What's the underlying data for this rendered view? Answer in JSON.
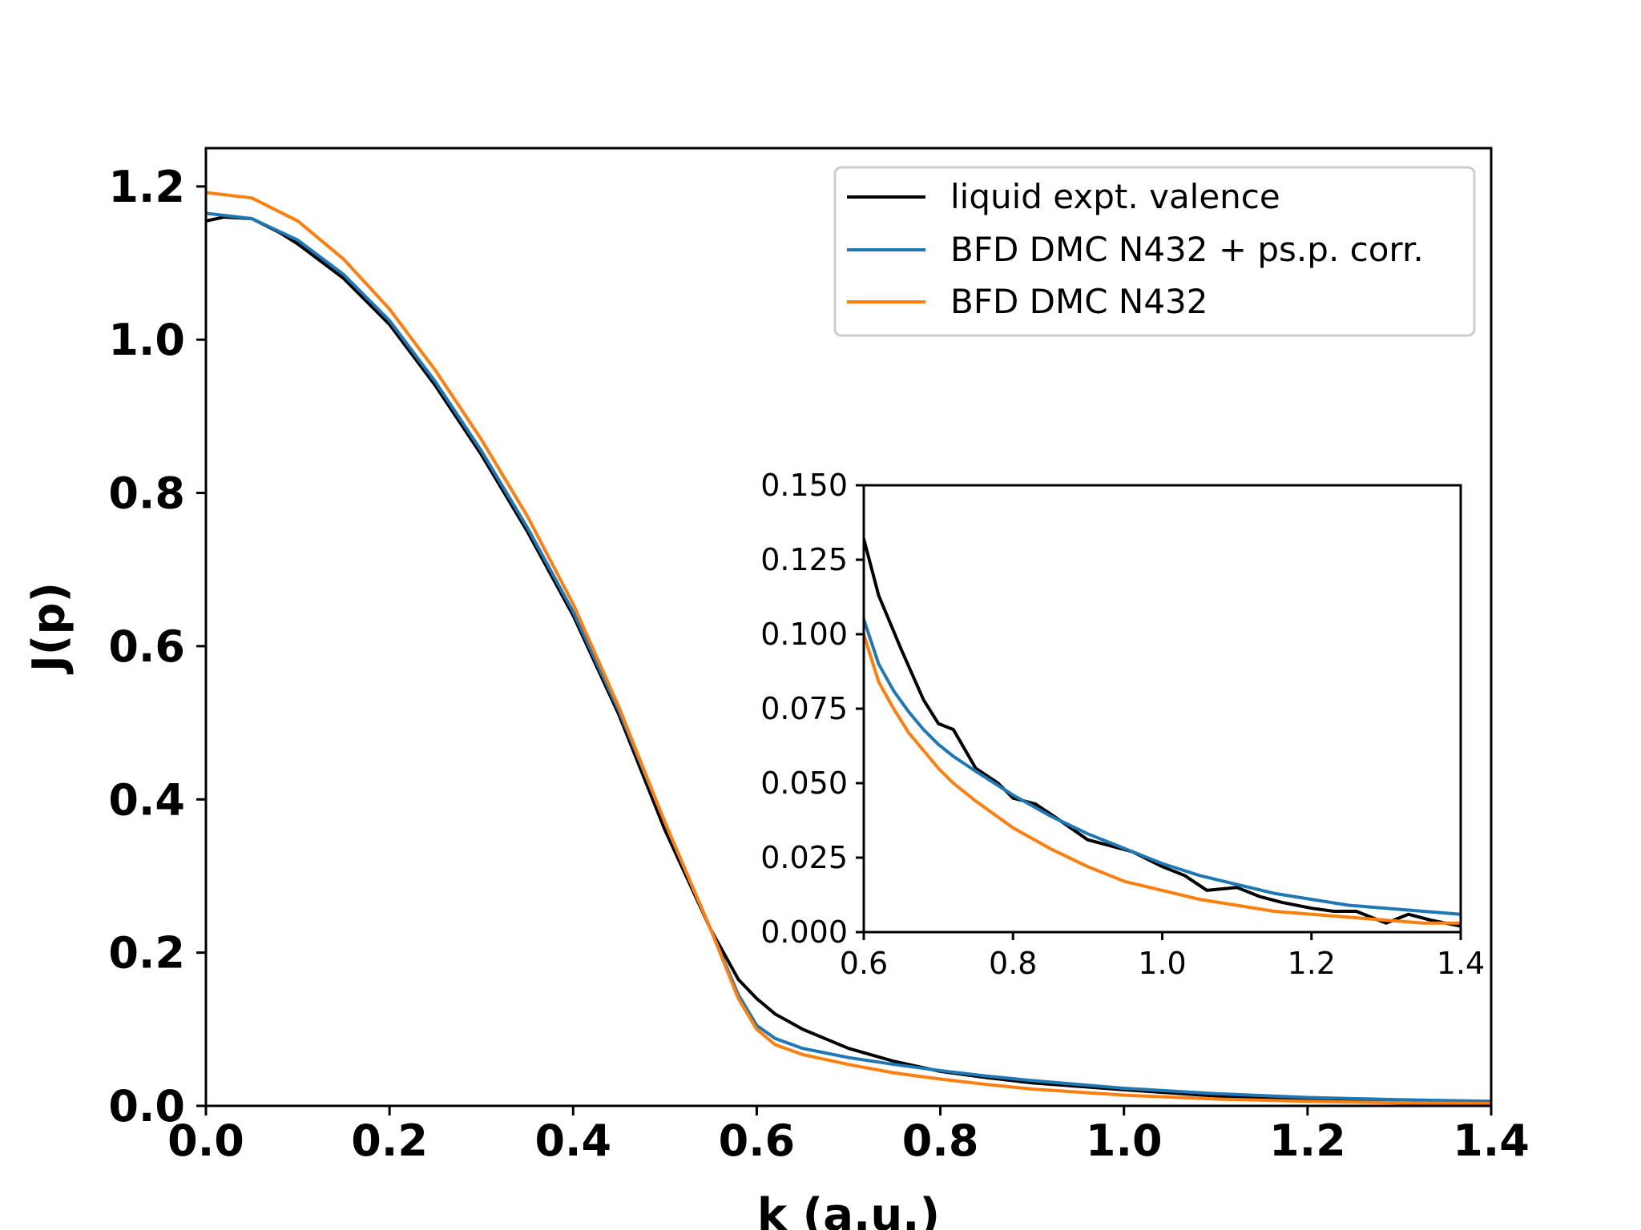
{
  "chart_data": [
    {
      "type": "line",
      "xlabel": "k (a.u.)",
      "ylabel": "J(p)",
      "xlim": [
        0.0,
        1.4
      ],
      "ylim": [
        0.0,
        1.25
      ],
      "xticks": [
        "0.0",
        "0.2",
        "0.4",
        "0.6",
        "0.8",
        "1.0",
        "1.2",
        "1.4"
      ],
      "yticks": [
        "0.0",
        "0.2",
        "0.4",
        "0.6",
        "0.8",
        "1.0",
        "1.2"
      ],
      "legend_position": "top-right",
      "series": [
        {
          "name": "liquid expt. valence",
          "color": "#000000",
          "x": [
            0.0,
            0.02,
            0.05,
            0.08,
            0.1,
            0.15,
            0.2,
            0.25,
            0.3,
            0.35,
            0.4,
            0.45,
            0.5,
            0.55,
            0.58,
            0.6,
            0.62,
            0.65,
            0.7,
            0.75,
            0.8,
            0.85,
            0.9,
            1.0,
            1.1,
            1.2,
            1.3,
            1.4
          ],
          "y": [
            1.155,
            1.16,
            1.158,
            1.14,
            1.125,
            1.08,
            1.02,
            0.94,
            0.85,
            0.75,
            0.64,
            0.51,
            0.36,
            0.23,
            0.165,
            0.14,
            0.12,
            0.1,
            0.075,
            0.058,
            0.045,
            0.037,
            0.03,
            0.021,
            0.013,
            0.008,
            0.004,
            0.003
          ]
        },
        {
          "name": "BFD DMC N432 + ps.p. corr.",
          "color": "#1f77b4",
          "x": [
            0.0,
            0.05,
            0.1,
            0.15,
            0.2,
            0.25,
            0.3,
            0.35,
            0.4,
            0.45,
            0.5,
            0.55,
            0.58,
            0.6,
            0.62,
            0.65,
            0.7,
            0.75,
            0.8,
            0.85,
            0.9,
            1.0,
            1.1,
            1.2,
            1.3,
            1.4
          ],
          "y": [
            1.165,
            1.158,
            1.13,
            1.085,
            1.025,
            0.945,
            0.855,
            0.755,
            0.645,
            0.515,
            0.37,
            0.23,
            0.145,
            0.105,
            0.088,
            0.075,
            0.063,
            0.054,
            0.046,
            0.039,
            0.033,
            0.023,
            0.016,
            0.011,
            0.008,
            0.006
          ]
        },
        {
          "name": "BFD DMC N432",
          "color": "#ff7f0e",
          "x": [
            0.0,
            0.05,
            0.1,
            0.15,
            0.2,
            0.25,
            0.3,
            0.35,
            0.4,
            0.45,
            0.5,
            0.55,
            0.58,
            0.6,
            0.62,
            0.65,
            0.7,
            0.75,
            0.8,
            0.85,
            0.9,
            1.0,
            1.1,
            1.2,
            1.3,
            1.4
          ],
          "y": [
            1.192,
            1.185,
            1.155,
            1.105,
            1.04,
            0.96,
            0.87,
            0.77,
            0.655,
            0.52,
            0.37,
            0.23,
            0.14,
            0.1,
            0.08,
            0.067,
            0.054,
            0.043,
            0.035,
            0.028,
            0.022,
            0.014,
            0.009,
            0.006,
            0.004,
            0.003
          ]
        }
      ]
    },
    {
      "type": "line",
      "inset": true,
      "xlim": [
        0.6,
        1.4
      ],
      "ylim": [
        0.0,
        0.15
      ],
      "xticks": [
        "0.6",
        "0.8",
        "1.0",
        "1.2",
        "1.4"
      ],
      "yticks": [
        "0.000",
        "0.025",
        "0.050",
        "0.075",
        "0.100",
        "0.125",
        "0.150"
      ],
      "series": [
        {
          "name": "liquid expt. valence",
          "color": "#000000",
          "x": [
            0.6,
            0.62,
            0.65,
            0.68,
            0.7,
            0.72,
            0.75,
            0.78,
            0.8,
            0.83,
            0.86,
            0.9,
            0.93,
            0.96,
            1.0,
            1.03,
            1.06,
            1.1,
            1.13,
            1.16,
            1.2,
            1.23,
            1.26,
            1.3,
            1.33,
            1.36,
            1.4
          ],
          "y": [
            0.132,
            0.113,
            0.095,
            0.078,
            0.07,
            0.068,
            0.055,
            0.05,
            0.045,
            0.043,
            0.038,
            0.031,
            0.029,
            0.027,
            0.022,
            0.019,
            0.014,
            0.015,
            0.012,
            0.01,
            0.008,
            0.007,
            0.007,
            0.003,
            0.006,
            0.004,
            0.002
          ]
        },
        {
          "name": "BFD DMC N432 + ps.p. corr.",
          "color": "#1f77b4",
          "x": [
            0.6,
            0.62,
            0.64,
            0.66,
            0.68,
            0.7,
            0.72,
            0.75,
            0.8,
            0.85,
            0.9,
            0.95,
            1.0,
            1.05,
            1.1,
            1.15,
            1.2,
            1.25,
            1.3,
            1.35,
            1.4
          ],
          "y": [
            0.105,
            0.09,
            0.081,
            0.074,
            0.068,
            0.063,
            0.059,
            0.054,
            0.046,
            0.039,
            0.033,
            0.028,
            0.023,
            0.019,
            0.016,
            0.013,
            0.011,
            0.009,
            0.008,
            0.007,
            0.006
          ]
        },
        {
          "name": "BFD DMC N432",
          "color": "#ff7f0e",
          "x": [
            0.6,
            0.62,
            0.64,
            0.66,
            0.68,
            0.7,
            0.72,
            0.75,
            0.8,
            0.85,
            0.9,
            0.95,
            1.0,
            1.05,
            1.1,
            1.15,
            1.2,
            1.25,
            1.3,
            1.35,
            1.4
          ],
          "y": [
            0.1,
            0.084,
            0.075,
            0.067,
            0.061,
            0.055,
            0.05,
            0.044,
            0.035,
            0.028,
            0.022,
            0.017,
            0.014,
            0.011,
            0.009,
            0.007,
            0.006,
            0.005,
            0.004,
            0.003,
            0.003
          ]
        }
      ]
    }
  ]
}
